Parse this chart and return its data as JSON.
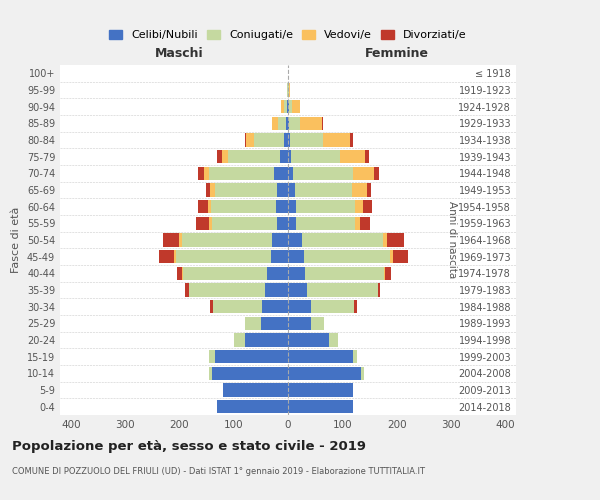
{
  "age_groups": [
    "0-4",
    "5-9",
    "10-14",
    "15-19",
    "20-24",
    "25-29",
    "30-34",
    "35-39",
    "40-44",
    "45-49",
    "50-54",
    "55-59",
    "60-64",
    "65-69",
    "70-74",
    "75-79",
    "80-84",
    "85-89",
    "90-94",
    "95-99",
    "100+"
  ],
  "birth_years": [
    "2014-2018",
    "2009-2013",
    "2004-2008",
    "1999-2003",
    "1994-1998",
    "1989-1993",
    "1984-1988",
    "1979-1983",
    "1974-1978",
    "1969-1973",
    "1964-1968",
    "1959-1963",
    "1954-1958",
    "1949-1953",
    "1944-1948",
    "1939-1943",
    "1934-1938",
    "1929-1933",
    "1924-1928",
    "1919-1923",
    "≤ 1918"
  ],
  "maschi": {
    "celibi": [
      130,
      120,
      140,
      135,
      80,
      50,
      48,
      42,
      38,
      32,
      30,
      20,
      22,
      20,
      25,
      15,
      8,
      3,
      2,
      0,
      0
    ],
    "coniugati": [
      0,
      0,
      5,
      10,
      20,
      30,
      90,
      140,
      155,
      175,
      165,
      120,
      120,
      115,
      120,
      95,
      55,
      15,
      5,
      1,
      0
    ],
    "vedovi": [
      0,
      0,
      0,
      0,
      0,
      0,
      0,
      0,
      2,
      3,
      5,
      5,
      5,
      8,
      10,
      12,
      15,
      12,
      5,
      1,
      0
    ],
    "divorziati": [
      0,
      0,
      0,
      0,
      0,
      0,
      5,
      8,
      10,
      28,
      30,
      25,
      18,
      8,
      10,
      8,
      2,
      0,
      0,
      0,
      0
    ]
  },
  "femmine": {
    "nubili": [
      120,
      120,
      135,
      120,
      75,
      42,
      42,
      35,
      32,
      30,
      25,
      15,
      14,
      12,
      10,
      6,
      4,
      2,
      2,
      0,
      0
    ],
    "coniugate": [
      0,
      0,
      5,
      8,
      18,
      25,
      80,
      130,
      145,
      158,
      150,
      108,
      110,
      105,
      110,
      90,
      60,
      20,
      5,
      2,
      0
    ],
    "vedove": [
      0,
      0,
      0,
      0,
      0,
      0,
      0,
      0,
      2,
      5,
      8,
      10,
      15,
      28,
      38,
      45,
      50,
      40,
      15,
      2,
      0
    ],
    "divorziate": [
      0,
      0,
      0,
      0,
      0,
      0,
      5,
      5,
      10,
      28,
      30,
      18,
      15,
      8,
      10,
      8,
      5,
      2,
      0,
      0,
      0
    ]
  },
  "colors": {
    "celibi": "#4472C4",
    "coniugati": "#C5D9A0",
    "vedovi": "#FAC05E",
    "divorziati": "#C0392B"
  },
  "xlim": 420,
  "title": "Popolazione per età, sesso e stato civile - 2019",
  "subtitle": "COMUNE DI POZZUOLO DEL FRIULI (UD) - Dati ISTAT 1° gennaio 2019 - Elaborazione TUTTITALIA.IT",
  "bg_color": "#f0f0f0",
  "plot_bg": "#ffffff"
}
